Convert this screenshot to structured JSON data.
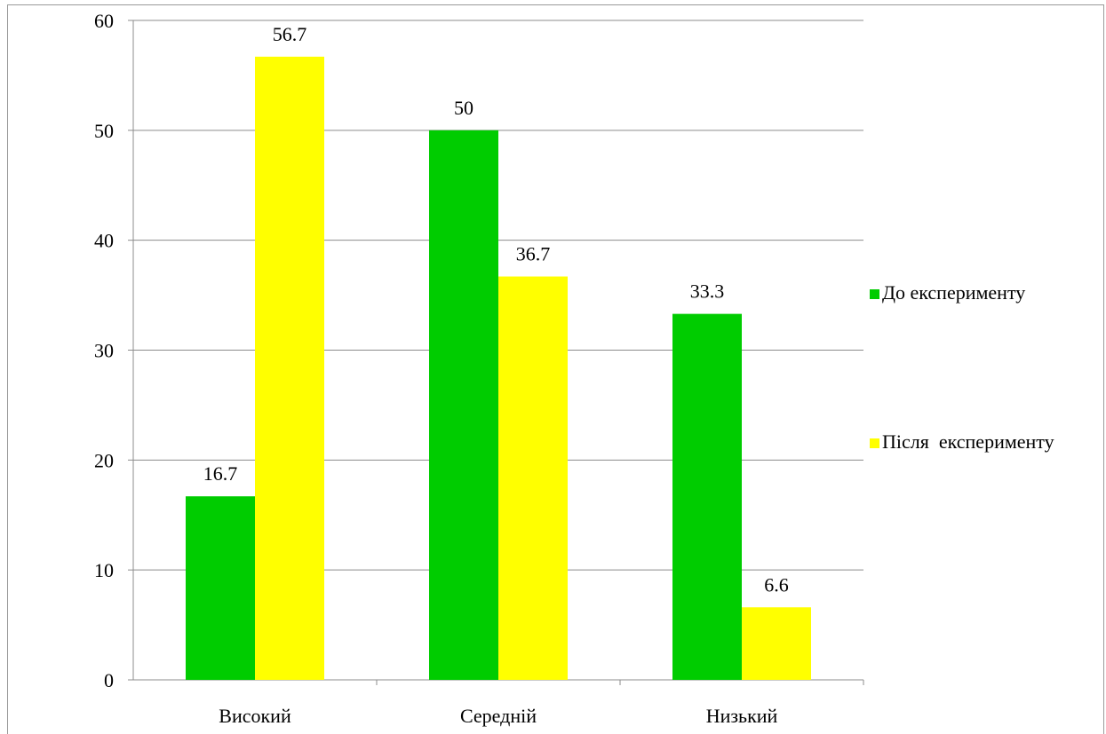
{
  "chart_data": {
    "type": "bar",
    "title": "",
    "xlabel": "",
    "ylabel": "",
    "categories": [
      "Високий",
      "Середній",
      "Низький"
    ],
    "series": [
      {
        "name": "До експерименту",
        "values": [
          16.7,
          50,
          33.3
        ],
        "color": "#00cc00"
      },
      {
        "name": "Після  експерименту",
        "values": [
          56.7,
          36.7,
          6.6
        ],
        "color": "#ffff00"
      }
    ],
    "ylim": [
      0,
      60
    ],
    "yticks": [
      0,
      10,
      20,
      30,
      40,
      50,
      60
    ],
    "grid": true,
    "legend_position": "right",
    "data_labels": true
  }
}
